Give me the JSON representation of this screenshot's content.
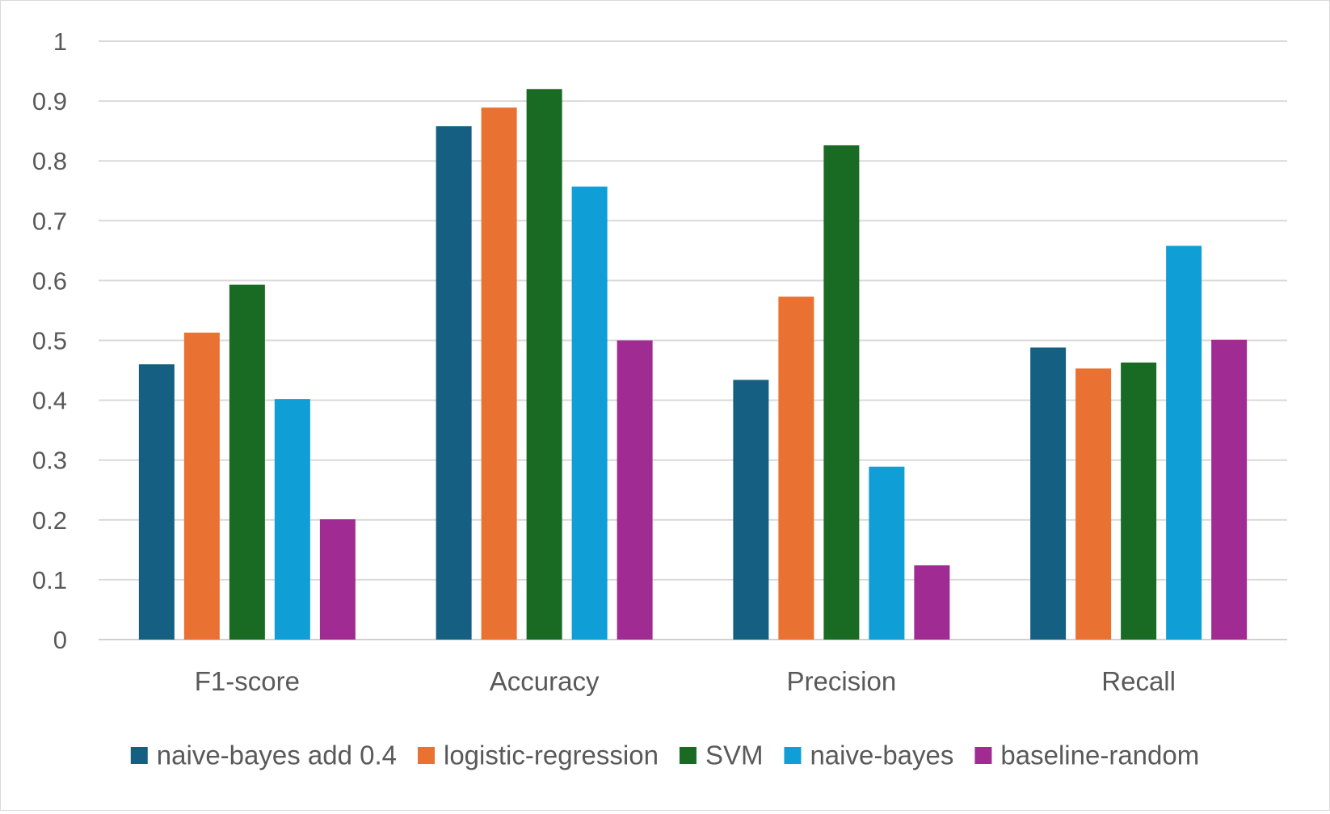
{
  "chart_data": {
    "type": "bar",
    "title": "",
    "xlabel": "",
    "ylabel": "",
    "ylim": [
      0,
      1
    ],
    "yticks": [
      "0",
      "0.1",
      "0.2",
      "0.3",
      "0.4",
      "0.5",
      "0.6",
      "0.7",
      "0.8",
      "0.9",
      "1"
    ],
    "grid": true,
    "legend_position": "bottom",
    "categories": [
      "F1-score",
      "Accuracy",
      "Precision",
      "Recall"
    ],
    "series": [
      {
        "name": "naive-bayes add 0.4",
        "color": "#156082",
        "values": [
          0.46,
          0.858,
          0.434,
          0.488
        ]
      },
      {
        "name": "logistic-regression",
        "color": "#E97132",
        "values": [
          0.513,
          0.889,
          0.573,
          0.453
        ]
      },
      {
        "name": "SVM",
        "color": "#196B24",
        "values": [
          0.593,
          0.92,
          0.826,
          0.463
        ]
      },
      {
        "name": "naive-bayes",
        "color": "#0F9ED5",
        "values": [
          0.402,
          0.757,
          0.289,
          0.658
        ]
      },
      {
        "name": "baseline-random",
        "color": "#A02B93",
        "values": [
          0.201,
          0.5,
          0.124,
          0.501
        ]
      }
    ]
  }
}
